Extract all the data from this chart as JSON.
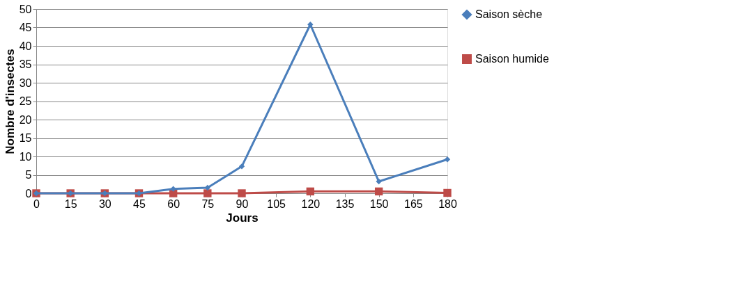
{
  "chart_data": {
    "type": "line",
    "xlabel": "Jours",
    "ylabel": "Nombre d'insectes",
    "x": [
      0,
      15,
      30,
      45,
      60,
      75,
      90,
      120,
      150,
      180
    ],
    "series": [
      {
        "name": "Saison sèche",
        "color": "#4a7ebb",
        "marker": "diamond",
        "values": [
          0,
          0,
          0,
          0,
          1.2,
          1.5,
          7.3,
          45.8,
          3.2,
          9.2
        ]
      },
      {
        "name": "Saison humide",
        "color": "#be4b48",
        "marker": "square",
        "values": [
          0,
          0,
          0,
          0,
          0,
          0,
          0,
          0.5,
          0.5,
          0.1
        ]
      }
    ],
    "xlim": [
      0,
      180
    ],
    "xticks": [
      0,
      15,
      30,
      45,
      60,
      75,
      90,
      105,
      120,
      135,
      150,
      165,
      180
    ],
    "ylim": [
      0,
      50
    ],
    "yticks": [
      0,
      5,
      10,
      15,
      20,
      25,
      30,
      35,
      40,
      45,
      50
    ],
    "grid": "y",
    "legend": "right",
    "line_style": "solid"
  }
}
